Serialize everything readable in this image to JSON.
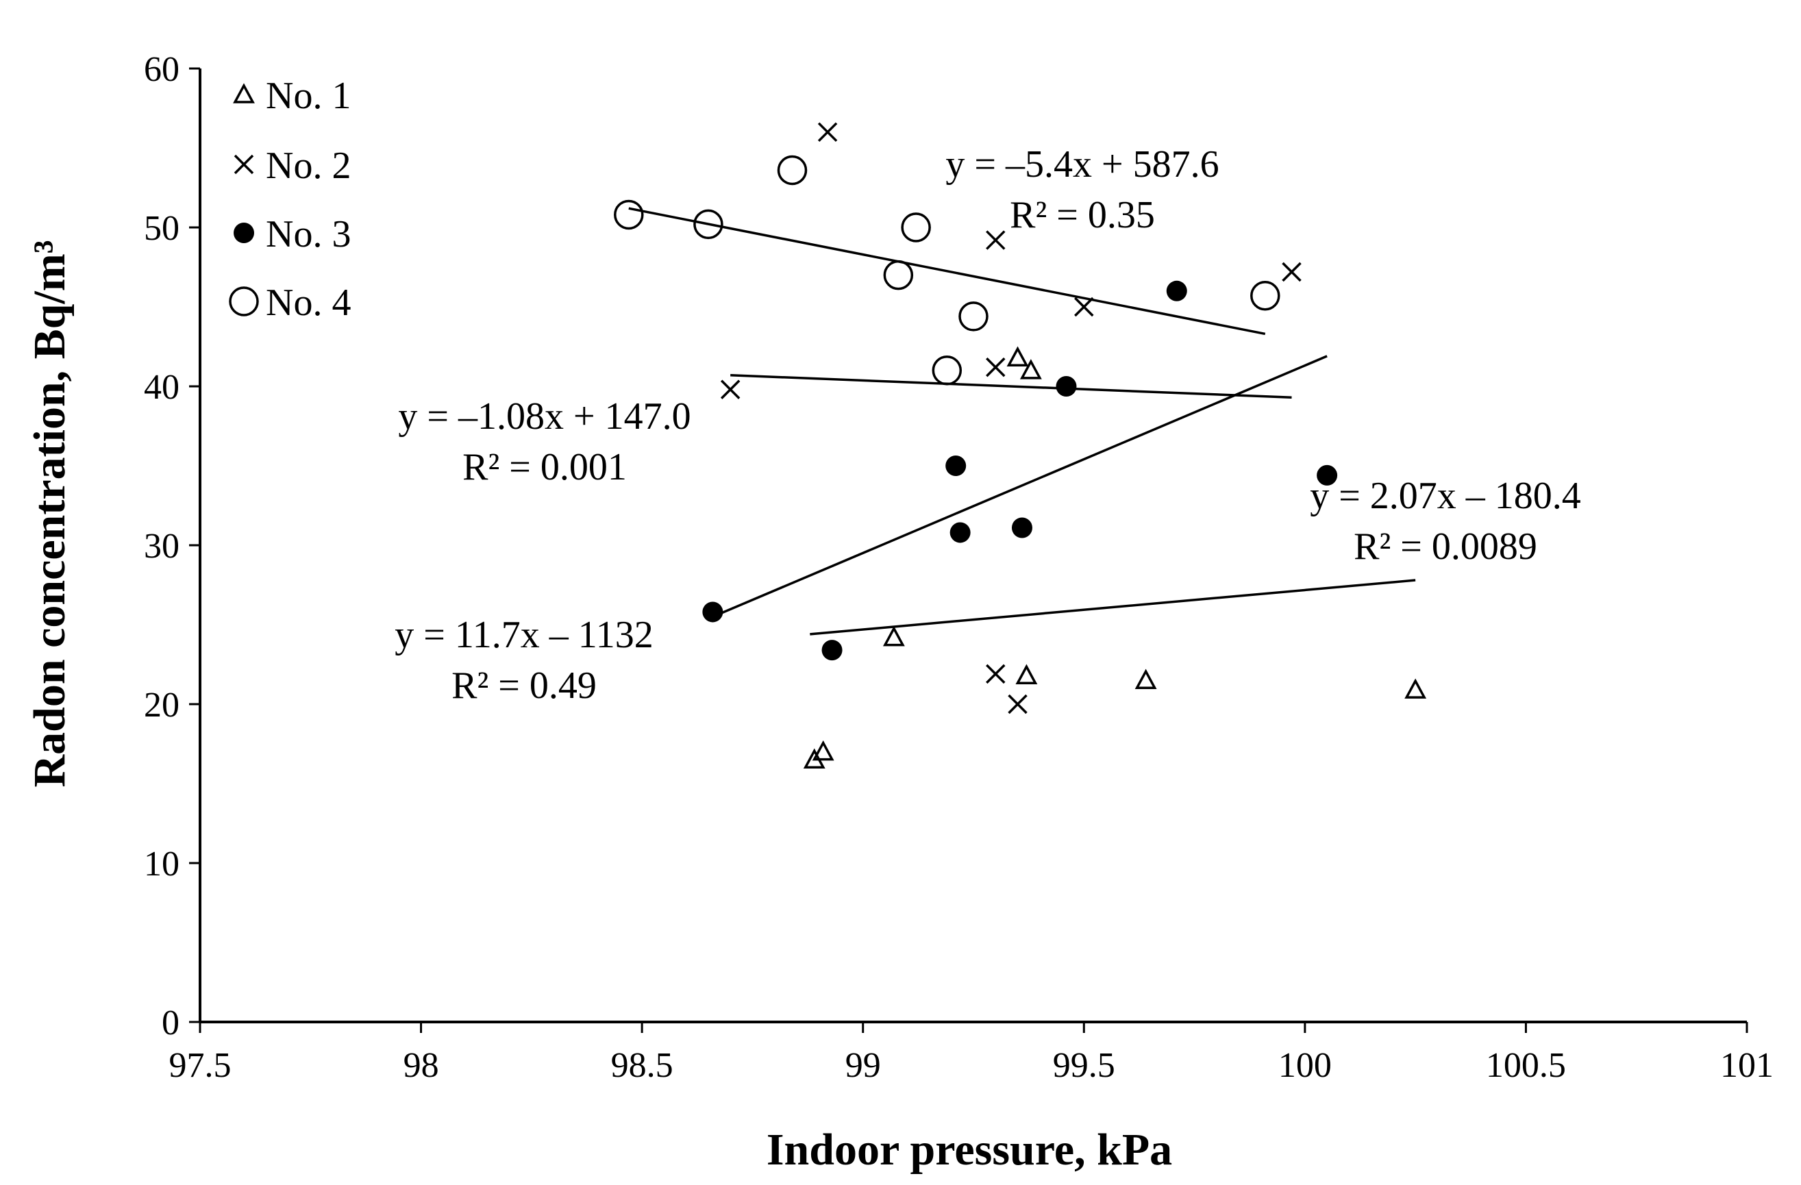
{
  "chart_data": {
    "type": "scatter",
    "title": "",
    "xlabel": "Indoor pressure, kPa",
    "ylabel": "Radon concentration, Bq/m³",
    "xlim": [
      97.5,
      101
    ],
    "ylim": [
      0,
      60
    ],
    "xticks": [
      "97.5",
      "98",
      "98.5",
      "99",
      "99.5",
      "100",
      "100.5",
      "101"
    ],
    "yticks": [
      "0",
      "10",
      "20",
      "30",
      "40",
      "50",
      "60"
    ],
    "grid": false,
    "legend_position": "top-left",
    "series": [
      {
        "name": "No. 1",
        "marker": "triangle",
        "points": [
          [
            98.89,
            16.5
          ],
          [
            98.91,
            17.0
          ],
          [
            99.07,
            24.2
          ],
          [
            99.35,
            41.8
          ],
          [
            99.38,
            41.0
          ],
          [
            99.37,
            21.8
          ],
          [
            99.64,
            21.5
          ],
          [
            100.25,
            20.9
          ]
        ],
        "trendline": {
          "x": [
            98.88,
            100.25
          ],
          "y": [
            24.4,
            27.8
          ]
        },
        "equation": "y = 2.07x – 180.4",
        "r2": "R² = 0.0089"
      },
      {
        "name": "No. 2",
        "marker": "cross",
        "points": [
          [
            98.92,
            56.0
          ],
          [
            99.3,
            49.2
          ],
          [
            99.5,
            45.0
          ],
          [
            99.97,
            47.2
          ],
          [
            98.7,
            39.8
          ],
          [
            99.3,
            41.2
          ],
          [
            99.3,
            21.9
          ],
          [
            99.35,
            20.0
          ]
        ],
        "trendline": {
          "x": [
            98.7,
            99.97
          ],
          "y": [
            40.7,
            39.3
          ]
        },
        "equation": "y = –1.08x + 147.0",
        "r2": "R² = 0.001"
      },
      {
        "name": "No. 3",
        "marker": "filled-circle",
        "points": [
          [
            98.66,
            25.8
          ],
          [
            98.93,
            23.4
          ],
          [
            99.21,
            35.0
          ],
          [
            99.22,
            30.8
          ],
          [
            99.36,
            31.1
          ],
          [
            99.46,
            40.0
          ],
          [
            99.71,
            46.0
          ],
          [
            100.05,
            34.4
          ]
        ],
        "trendline": {
          "x": [
            98.66,
            100.05
          ],
          "y": [
            25.5,
            41.9
          ]
        },
        "equation": "y = 11.7x – 1132",
        "r2": "R² = 0.49"
      },
      {
        "name": "No. 4",
        "marker": "open-circle",
        "points": [
          [
            98.47,
            50.8
          ],
          [
            98.65,
            50.2
          ],
          [
            98.84,
            53.6
          ],
          [
            99.08,
            47.0
          ],
          [
            99.12,
            50.0
          ],
          [
            99.19,
            41.0
          ],
          [
            99.25,
            44.4
          ],
          [
            99.91,
            45.7
          ]
        ],
        "trendline": {
          "x": [
            98.47,
            99.91
          ],
          "y": [
            51.2,
            43.3
          ]
        },
        "equation": "y = –5.4x + 587.6",
        "r2": "R² = 0.35"
      }
    ]
  }
}
